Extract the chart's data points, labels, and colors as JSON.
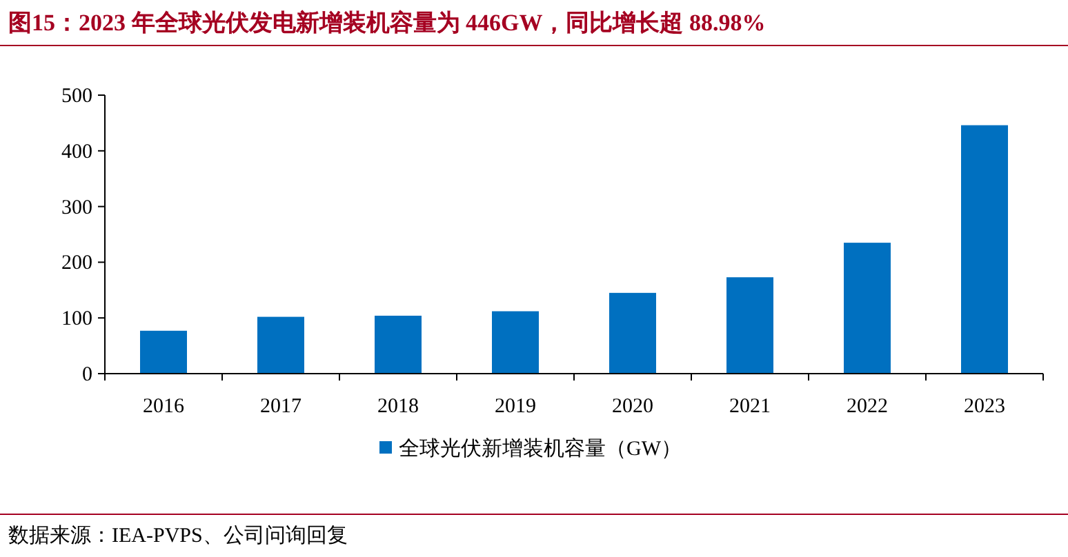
{
  "chart_data": {
    "type": "bar",
    "title": "图15：2023 年全球光伏发电新增装机容量为 446GW，同比增长超 88.98%",
    "categories": [
      "2016",
      "2017",
      "2018",
      "2019",
      "2020",
      "2021",
      "2022",
      "2023"
    ],
    "series": [
      {
        "name": "全球光伏新增装机容量（GW）",
        "color": "#0070c0",
        "values": [
          77,
          102,
          104,
          112,
          145,
          173,
          235,
          446
        ]
      }
    ],
    "ylim": [
      0,
      500
    ],
    "yticks": [
      0,
      100,
      200,
      300,
      400,
      500
    ],
    "grid": false,
    "legend": "bottom",
    "annotations": [
      "数据来源：IEA-PVPS、公司问询回复"
    ]
  }
}
